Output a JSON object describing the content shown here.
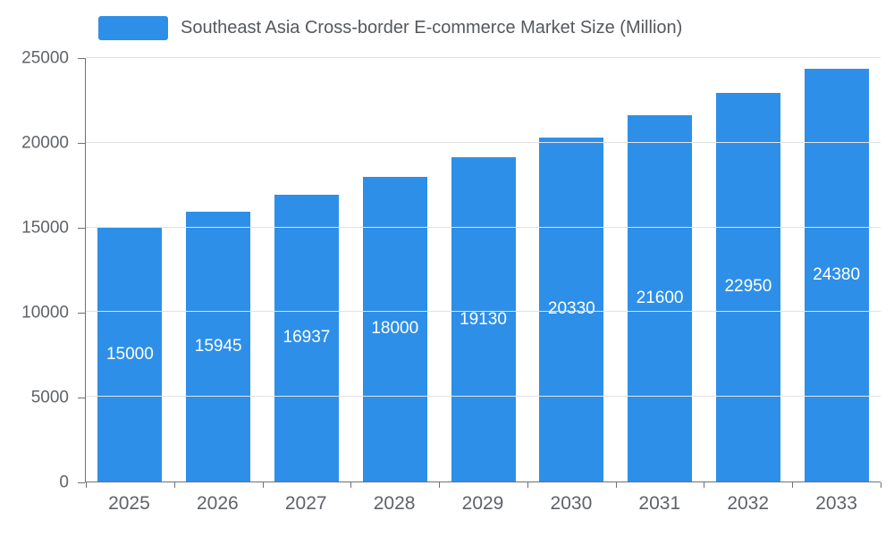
{
  "chart_data": {
    "type": "bar",
    "title": "Southeast Asia Cross-border E-commerce Market Size (Million)",
    "categories": [
      "2025",
      "2026",
      "2027",
      "2028",
      "2029",
      "2030",
      "2031",
      "2032",
      "2033"
    ],
    "values": [
      15000,
      15945,
      16937,
      18000,
      19130,
      20330,
      21600,
      22950,
      24380
    ],
    "xlabel": "",
    "ylabel": "",
    "ylim": [
      0,
      25000
    ],
    "yticks": [
      0,
      5000,
      10000,
      15000,
      20000,
      25000
    ],
    "grid": true,
    "legend_position": "top",
    "bar_color": "#2E8FE8",
    "value_label_color": "#ffffff",
    "value_label_position": "inside-center"
  }
}
